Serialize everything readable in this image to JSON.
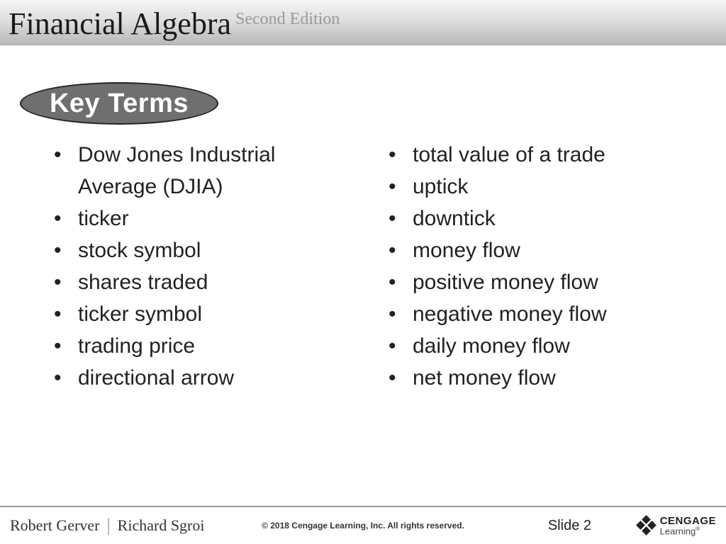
{
  "header": {
    "book_title": "Financial Algebra",
    "edition": "Second Edition"
  },
  "section": {
    "badge_label": "Key Terms",
    "badge_bg_color": "#6f6f6f",
    "badge_text_color": "#ffffff"
  },
  "terms": {
    "left": [
      "Dow Jones Industrial Average (DJIA)",
      "ticker",
      "stock symbol",
      "shares traded",
      "ticker symbol",
      "trading price",
      "directional arrow"
    ],
    "right": [
      "total value of a trade",
      "uptick",
      "downtick",
      "money flow",
      "positive money flow",
      "negative money flow",
      "daily money flow",
      "net money flow"
    ]
  },
  "footer": {
    "author1": "Robert Gerver",
    "author2": "Richard Sgroi",
    "copyright": "© 2018 Cengage Learning, Inc. All rights reserved.",
    "slide_label": "Slide 2",
    "publisher_name": "CENGAGE",
    "publisher_sub": "Learning"
  },
  "style": {
    "body_font_size": 30,
    "title_font_size": 44,
    "badge_font_size": 38,
    "text_color": "#222222",
    "background_color": "#ffffff"
  }
}
